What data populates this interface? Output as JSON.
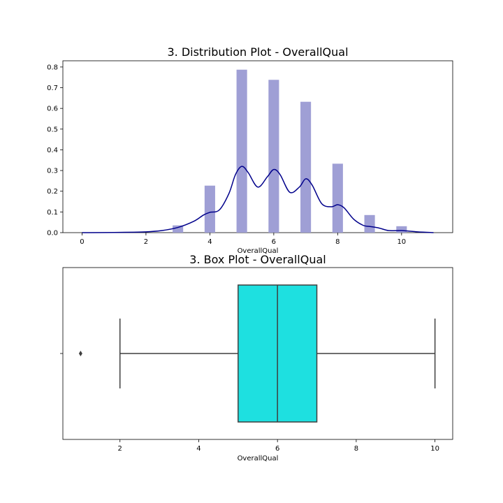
{
  "chart_data": [
    {
      "type": "bar",
      "title": "3. Distribution Plot - OverallQual",
      "xlabel": "OverallQual",
      "ylabel": "",
      "xlim": [
        -0.6,
        11.6
      ],
      "ylim": [
        0,
        0.83
      ],
      "xticks": [
        0,
        2,
        4,
        6,
        8,
        10
      ],
      "yticks": [
        0.0,
        0.1,
        0.2,
        0.3,
        0.4,
        0.5,
        0.6,
        0.7,
        0.8
      ],
      "ytick_labels": [
        "0.0",
        "0.1",
        "0.2",
        "0.3",
        "0.4",
        "0.5",
        "0.6",
        "0.7",
        "0.8"
      ],
      "bar_color": "#9f9fd5",
      "kde_color": "#00008b",
      "bar_width": 0.33,
      "bars": [
        {
          "x": 3,
          "value": 0.035
        },
        {
          "x": 4,
          "value": 0.227
        },
        {
          "x": 5,
          "value": 0.787
        },
        {
          "x": 6,
          "value": 0.738
        },
        {
          "x": 7,
          "value": 0.632
        },
        {
          "x": 8,
          "value": 0.333
        },
        {
          "x": 9,
          "value": 0.085
        },
        {
          "x": 10,
          "value": 0.031
        }
      ],
      "kde": {
        "x": [
          0,
          1,
          2,
          2.5,
          3,
          3.5,
          3.8,
          4,
          4.3,
          4.6,
          4.8,
          5,
          5.2,
          5.5,
          5.8,
          6,
          6.2,
          6.5,
          6.8,
          7,
          7.2,
          7.5,
          7.8,
          8,
          8.2,
          8.5,
          8.8,
          9,
          9.3,
          9.6,
          10,
          10.5,
          11
        ],
        "y": [
          0.0,
          0.001,
          0.004,
          0.01,
          0.025,
          0.055,
          0.085,
          0.098,
          0.11,
          0.19,
          0.28,
          0.32,
          0.29,
          0.22,
          0.27,
          0.305,
          0.28,
          0.195,
          0.22,
          0.26,
          0.23,
          0.14,
          0.125,
          0.135,
          0.12,
          0.065,
          0.035,
          0.03,
          0.022,
          0.01,
          0.01,
          0.004,
          0.0
        ]
      }
    },
    {
      "type": "box",
      "title": "3. Box Plot - OverallQual",
      "xlabel": "OverallQual",
      "xlim": [
        0.55,
        10.45
      ],
      "xticks": [
        2,
        4,
        6,
        8,
        10
      ],
      "box_color": "#1ee0e0",
      "line_color": "#3f3f3f",
      "whisker_low": 2,
      "q1": 5,
      "median": 6,
      "q3": 7,
      "whisker_high": 10,
      "outliers": [
        1
      ]
    }
  ]
}
